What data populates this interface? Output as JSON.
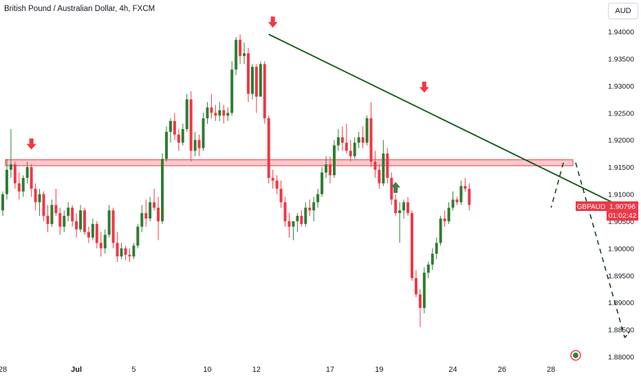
{
  "header": {
    "title": "British Pound / Australian Dollar, 4h, FXCM"
  },
  "currency_button": {
    "label": "AUD"
  },
  "price_label": {
    "symbol": "GBPAUD",
    "price": "1.90796",
    "countdown": "01:02:42"
  },
  "colors": {
    "up": "#2e7d32",
    "down": "#f23645",
    "trendline": "#1b5e20",
    "zone_fill": "#f7b7bd",
    "zone_stroke": "#f23645",
    "arrow_down": "#f23645",
    "arrow_up": "#4a7c4a",
    "projection": "#1a3d1a"
  },
  "chart_data": {
    "type": "candlestick",
    "symbol": "GBPAUD",
    "interval": "4h",
    "ylim": [
      1.8795,
      1.9435
    ],
    "y_ticks": [
      "1.94000",
      "1.93500",
      "1.93000",
      "1.92500",
      "1.92000",
      "1.91500",
      "1.91000",
      "1.90500",
      "1.90000",
      "1.89500",
      "1.89000",
      "1.88500",
      "1.88000"
    ],
    "x_ticks": [
      {
        "label": "28",
        "i": 0,
        "bold": false
      },
      {
        "label": "Jul",
        "i": 18,
        "bold": true
      },
      {
        "label": "5",
        "i": 32,
        "bold": false
      },
      {
        "label": "10",
        "i": 50,
        "bold": false
      },
      {
        "label": "12",
        "i": 62,
        "bold": false
      },
      {
        "label": "17",
        "i": 80,
        "bold": false
      },
      {
        "label": "19",
        "i": 92,
        "bold": false
      },
      {
        "label": "24",
        "i": 110,
        "bold": false
      },
      {
        "label": "26",
        "i": 122,
        "bold": false
      },
      {
        "label": "28",
        "i": 134,
        "bold": false
      }
    ],
    "candles": [
      [
        1.907,
        1.9105,
        1.906,
        1.91
      ],
      [
        1.91,
        1.9165,
        1.909,
        1.9145
      ],
      [
        1.9145,
        1.922,
        1.913,
        1.9155
      ],
      [
        1.9155,
        1.916,
        1.911,
        1.912
      ],
      [
        1.912,
        1.914,
        1.909,
        1.9105
      ],
      [
        1.9105,
        1.9135,
        1.9095,
        1.913
      ],
      [
        1.913,
        1.916,
        1.912,
        1.915
      ],
      [
        1.915,
        1.9155,
        1.9095,
        1.911
      ],
      [
        1.911,
        1.912,
        1.907,
        1.9085
      ],
      [
        1.9085,
        1.911,
        1.906,
        1.91
      ],
      [
        1.91,
        1.9105,
        1.905,
        1.906
      ],
      [
        1.906,
        1.908,
        1.903,
        1.9045
      ],
      [
        1.9045,
        1.909,
        1.904,
        1.908
      ],
      [
        1.908,
        1.911,
        1.906,
        1.9065
      ],
      [
        1.9065,
        1.9075,
        1.9025,
        1.904
      ],
      [
        1.904,
        1.907,
        1.903,
        1.906
      ],
      [
        1.906,
        1.9085,
        1.905,
        1.9075
      ],
      [
        1.9075,
        1.908,
        1.904,
        1.905
      ],
      [
        1.905,
        1.9065,
        1.902,
        1.9035
      ],
      [
        1.9035,
        1.908,
        1.903,
        1.907
      ],
      [
        1.907,
        1.9075,
        1.9025,
        1.903
      ],
      [
        1.903,
        1.904,
        1.901,
        1.902
      ],
      [
        1.902,
        1.9055,
        1.9015,
        1.9045
      ],
      [
        1.9045,
        1.905,
        1.9,
        1.901
      ],
      [
        1.901,
        1.903,
        1.8985,
        1.9
      ],
      [
        1.9,
        1.9035,
        1.899,
        1.9025
      ],
      [
        1.9025,
        1.908,
        1.902,
        1.907
      ],
      [
        1.907,
        1.9075,
        1.9,
        1.901
      ],
      [
        1.901,
        1.903,
        1.8975,
        1.8985
      ],
      [
        1.8985,
        1.901,
        1.898,
        1.9
      ],
      [
        1.9,
        1.9005,
        1.8978,
        1.8988
      ],
      [
        1.8988,
        1.9,
        1.8975,
        1.8985
      ],
      [
        1.8985,
        1.901,
        1.898,
        1.9005
      ],
      [
        1.9005,
        1.9045,
        1.9,
        1.904
      ],
      [
        1.904,
        1.908,
        1.903,
        1.9065
      ],
      [
        1.9065,
        1.909,
        1.904,
        1.9055
      ],
      [
        1.9055,
        1.9095,
        1.905,
        1.9085
      ],
      [
        1.9085,
        1.911,
        1.907,
        1.9075
      ],
      [
        1.9075,
        1.9095,
        1.9015,
        1.905
      ],
      [
        1.905,
        1.9175,
        1.9045,
        1.9165
      ],
      [
        1.9165,
        1.9225,
        1.916,
        1.9215
      ],
      [
        1.9215,
        1.924,
        1.9195,
        1.9235
      ],
      [
        1.9235,
        1.925,
        1.92,
        1.921
      ],
      [
        1.921,
        1.922,
        1.918,
        1.9195
      ],
      [
        1.9195,
        1.923,
        1.919,
        1.922
      ],
      [
        1.922,
        1.9285,
        1.9215,
        1.9275
      ],
      [
        1.9275,
        1.929,
        1.916,
        1.918
      ],
      [
        1.918,
        1.9215,
        1.917,
        1.92
      ],
      [
        1.92,
        1.921,
        1.917,
        1.9185
      ],
      [
        1.9185,
        1.925,
        1.918,
        1.924
      ],
      [
        1.924,
        1.927,
        1.923,
        1.926
      ],
      [
        1.926,
        1.9285,
        1.924,
        1.925
      ],
      [
        1.925,
        1.9265,
        1.9235,
        1.9245
      ],
      [
        1.9245,
        1.927,
        1.9235,
        1.9255
      ],
      [
        1.9255,
        1.9265,
        1.923,
        1.9245
      ],
      [
        1.9245,
        1.926,
        1.9235,
        1.925
      ],
      [
        1.925,
        1.9345,
        1.9245,
        1.933
      ],
      [
        1.933,
        1.939,
        1.932,
        1.9385
      ],
      [
        1.9385,
        1.9395,
        1.934,
        1.9355
      ],
      [
        1.9355,
        1.938,
        1.934,
        1.936
      ],
      [
        1.936,
        1.937,
        1.927,
        1.9285
      ],
      [
        1.9285,
        1.934,
        1.9275,
        1.9335
      ],
      [
        1.9335,
        1.934,
        1.925,
        1.928
      ],
      [
        1.928,
        1.9345,
        1.928,
        1.934
      ],
      [
        1.934,
        1.9345,
        1.923,
        1.924
      ],
      [
        1.924,
        1.9245,
        1.912,
        1.913
      ],
      [
        1.913,
        1.9145,
        1.911,
        1.9125
      ],
      [
        1.9125,
        1.9135,
        1.91,
        1.911
      ],
      [
        1.911,
        1.9125,
        1.9075,
        1.9085
      ],
      [
        1.9085,
        1.9095,
        1.904,
        1.905
      ],
      [
        1.905,
        1.9065,
        1.902,
        1.904
      ],
      [
        1.904,
        1.905,
        1.9015,
        1.905
      ],
      [
        1.905,
        1.9065,
        1.903,
        1.906
      ],
      [
        1.906,
        1.907,
        1.904,
        1.9045
      ],
      [
        1.9045,
        1.9085,
        1.904,
        1.9075
      ],
      [
        1.9075,
        1.909,
        1.906,
        1.907
      ],
      [
        1.907,
        1.9095,
        1.905,
        1.9085
      ],
      [
        1.9085,
        1.911,
        1.9075,
        1.91
      ],
      [
        1.91,
        1.915,
        1.9095,
        1.914
      ],
      [
        1.914,
        1.917,
        1.913,
        1.9155
      ],
      [
        1.9155,
        1.917,
        1.912,
        1.9135
      ],
      [
        1.9135,
        1.92,
        1.913,
        1.919
      ],
      [
        1.919,
        1.922,
        1.918,
        1.9205
      ],
      [
        1.9205,
        1.9225,
        1.918,
        1.9195
      ],
      [
        1.9195,
        1.923,
        1.9175,
        1.918
      ],
      [
        1.918,
        1.92,
        1.916,
        1.917
      ],
      [
        1.917,
        1.9205,
        1.9165,
        1.9195
      ],
      [
        1.9195,
        1.9215,
        1.9185,
        1.9205
      ],
      [
        1.9205,
        1.9225,
        1.9185,
        1.9195
      ],
      [
        1.9195,
        1.9245,
        1.919,
        1.924
      ],
      [
        1.924,
        1.927,
        1.915,
        1.916
      ],
      [
        1.916,
        1.918,
        1.913,
        1.9145
      ],
      [
        1.9145,
        1.9155,
        1.911,
        1.912
      ],
      [
        1.912,
        1.92,
        1.9115,
        1.9175
      ],
      [
        1.9175,
        1.9185,
        1.912,
        1.913
      ],
      [
        1.913,
        1.914,
        1.908,
        1.909
      ],
      [
        1.909,
        1.91,
        1.906,
        1.9065
      ],
      [
        1.9065,
        1.9085,
        1.901,
        1.907
      ],
      [
        1.907,
        1.909,
        1.9055,
        1.9085
      ],
      [
        1.9085,
        1.9095,
        1.906,
        1.9065
      ],
      [
        1.9065,
        1.907,
        1.894,
        1.8945
      ],
      [
        1.8945,
        1.896,
        1.891,
        1.8915
      ],
      [
        1.8915,
        1.8925,
        1.8855,
        1.889
      ],
      [
        1.889,
        1.8965,
        1.888,
        1.8955
      ],
      [
        1.8955,
        1.8975,
        1.8945,
        1.897
      ],
      [
        1.897,
        1.9,
        1.896,
        1.899
      ],
      [
        1.899,
        1.902,
        1.898,
        1.901
      ],
      [
        1.901,
        1.906,
        1.9005,
        1.9055
      ],
      [
        1.9055,
        1.907,
        1.904,
        1.905
      ],
      [
        1.905,
        1.9085,
        1.9045,
        1.9075
      ],
      [
        1.9075,
        1.9105,
        1.907,
        1.909
      ],
      [
        1.909,
        1.9095,
        1.908,
        1.9085
      ],
      [
        1.9085,
        1.9125,
        1.908,
        1.9115
      ],
      [
        1.9115,
        1.913,
        1.9105,
        1.911
      ],
      [
        1.911,
        1.912,
        1.907,
        1.908
      ]
    ],
    "zone": {
      "y_top": 1.91635,
      "y_bottom": 1.91525,
      "i_start": 1,
      "i_end": 139
    },
    "trendline": {
      "i1": 65,
      "y1": 1.9395,
      "i2": 153,
      "y2": 1.907
    },
    "projection": [
      {
        "i": 137,
        "y": 1.9158
      },
      {
        "i": 134,
        "y": 1.9075
      },
      {
        "i": 140,
        "y": 1.9158
      },
      {
        "i": 152,
        "y": 1.8835
      }
    ],
    "markers": [
      {
        "type": "arrow-down",
        "i": 7,
        "y": 1.9185
      },
      {
        "type": "arrow-down",
        "i": 66,
        "y": 1.941
      },
      {
        "type": "arrow-down",
        "i": 103,
        "y": 1.929
      },
      {
        "type": "arrow-up",
        "i": 96,
        "y": 1.912
      }
    ],
    "timer_icon": {
      "i": 140,
      "y": 1.8838
    }
  }
}
